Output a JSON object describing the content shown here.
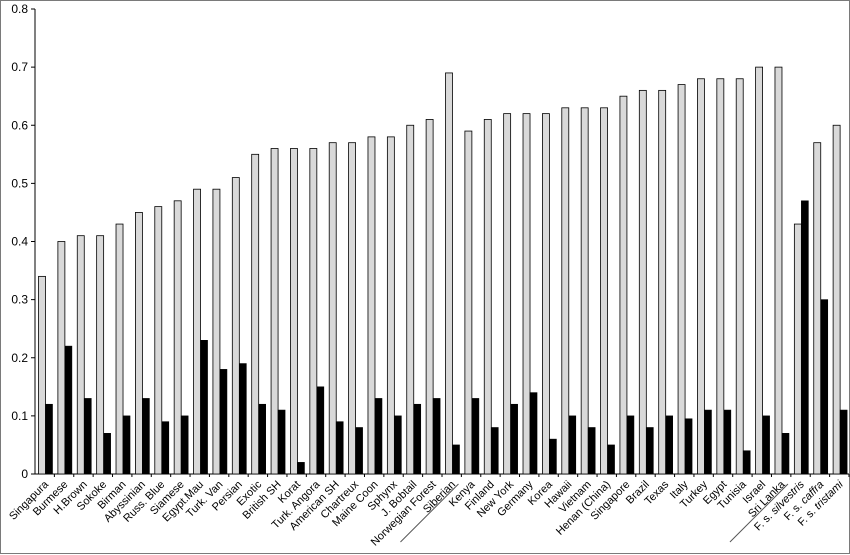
{
  "chart_data": {
    "type": "bar",
    "title": "",
    "xlabel": "",
    "ylabel": "",
    "ylim": [
      0,
      0.8
    ],
    "yticks": [
      "0",
      "0.1",
      "0.2",
      "0.3",
      "0.4",
      "0.5",
      "0.6",
      "0.7",
      "0.8"
    ],
    "grid": false,
    "legend": "none",
    "categories": [
      {
        "label": "Singapura"
      },
      {
        "label": "Burmese"
      },
      {
        "label": "H.Brown"
      },
      {
        "label": "Sokoke"
      },
      {
        "label": "Birman"
      },
      {
        "label": "Abyssinian"
      },
      {
        "label": "Russ. Blue"
      },
      {
        "label": "Siamese"
      },
      {
        "label": "Egypt.Mau"
      },
      {
        "label": "Turk. Van"
      },
      {
        "label": "Persian"
      },
      {
        "label": "Exotic"
      },
      {
        "label": "British SH"
      },
      {
        "label": "Korat"
      },
      {
        "label": "Turk. Angora"
      },
      {
        "label": "American SH"
      },
      {
        "label": "Chartreux"
      },
      {
        "label": "Maine Coon"
      },
      {
        "label": "Sphynx"
      },
      {
        "label": "J. Bobtail"
      },
      {
        "label": "Norwegian Forest"
      },
      {
        "label": "Siberian"
      },
      {
        "label": "Kenya"
      },
      {
        "label": "Finland"
      },
      {
        "label": "New York"
      },
      {
        "label": "Germany"
      },
      {
        "label": "Korea"
      },
      {
        "label": "Hawaii"
      },
      {
        "label": "Vietnam"
      },
      {
        "label": "Henan (China)"
      },
      {
        "label": "Singapore"
      },
      {
        "label": "Brazil"
      },
      {
        "label": "Texas"
      },
      {
        "label": "Italy"
      },
      {
        "label": "Turkey"
      },
      {
        "label": "Egypt"
      },
      {
        "label": "Tunisia"
      },
      {
        "label": "Israel"
      },
      {
        "label": "Sri Lanka"
      },
      {
        "label": "F. s. ",
        "italic": "silvestris"
      },
      {
        "label": "F. s. ",
        "italic": "caffra"
      },
      {
        "label": "F. s. ",
        "italic": "tristami"
      }
    ],
    "series": [
      {
        "color": "#d9d9d9",
        "values": [
          0.34,
          0.4,
          0.41,
          0.41,
          0.43,
          0.45,
          0.46,
          0.47,
          0.49,
          0.49,
          0.51,
          0.55,
          0.56,
          0.56,
          0.56,
          0.57,
          0.57,
          0.58,
          0.58,
          0.6,
          0.61,
          0.69,
          0.59,
          0.61,
          0.62,
          0.62,
          0.62,
          0.63,
          0.63,
          0.63,
          0.65,
          0.66,
          0.66,
          0.67,
          0.68,
          0.68,
          0.68,
          0.7,
          0.7,
          0.43,
          0.57,
          0.6
        ]
      },
      {
        "color": "#000000",
        "values": [
          0.12,
          0.22,
          0.13,
          0.07,
          0.1,
          0.13,
          0.09,
          0.1,
          0.23,
          0.18,
          0.19,
          0.12,
          0.11,
          0.02,
          0.15,
          0.09,
          0.08,
          0.13,
          0.1,
          0.12,
          0.13,
          0.05,
          0.13,
          0.08,
          0.12,
          0.14,
          0.06,
          0.1,
          0.08,
          0.05,
          0.1,
          0.08,
          0.1,
          0.095,
          0.11,
          0.11,
          0.04,
          0.1,
          0.07,
          0.47,
          0.3,
          0.11
        ]
      }
    ],
    "group_dividers": [
      "Siberian",
      "Sri Lanka"
    ]
  }
}
